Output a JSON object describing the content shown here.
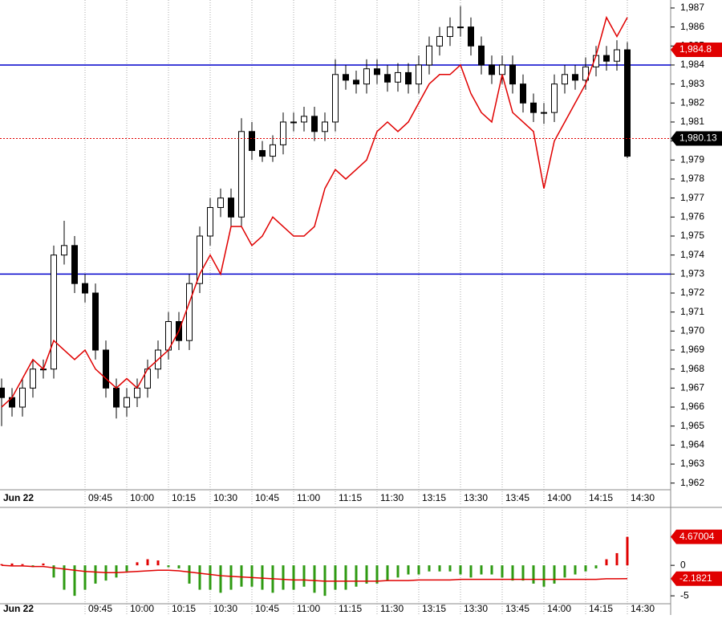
{
  "chart_data": [
    {
      "type": "candlestick",
      "categories": [
        "Jun 22",
        null,
        null,
        null,
        null,
        null,
        null,
        null,
        "09:45",
        null,
        null,
        null,
        "10:00",
        null,
        null,
        null,
        "10:15",
        null,
        null,
        null,
        "10:30",
        null,
        null,
        null,
        "10:45",
        null,
        null,
        null,
        "11:00",
        null,
        null,
        null,
        "11:15",
        null,
        null,
        null,
        "11:30",
        null,
        null,
        null,
        "13:15",
        null,
        null,
        null,
        "13:30",
        null,
        null,
        null,
        "13:45",
        null,
        null,
        null,
        "14:00",
        null,
        null,
        null,
        "14:15",
        null,
        null,
        null,
        "14:30"
      ],
      "open": [
        1967,
        1966.5,
        1966,
        1967,
        1968,
        1968,
        1974,
        1974.5,
        1972.5,
        1972,
        1969,
        1967,
        1966,
        1966.5,
        1967,
        1968,
        1969,
        1970.5,
        1969.5,
        1972.5,
        1975,
        1976.5,
        1977,
        1976,
        1980.5,
        1979.5,
        1979.2,
        1979.8,
        1981,
        1981,
        1981.3,
        1980.5,
        1981,
        1983.5,
        1983.2,
        1983,
        1983.8,
        1983.5,
        1983.1,
        1983.6,
        1983,
        1984,
        1985,
        1985.5,
        1986,
        1986,
        1985,
        1984,
        1983.5,
        1984,
        1983,
        1982,
        1981.5,
        1981.5,
        1983,
        1983.5,
        1983.2,
        1983.9,
        1984.5,
        1984.2,
        1984.8
      ],
      "high": [
        1967.5,
        1967,
        1967.5,
        1968.5,
        1968.5,
        1974.5,
        1975.8,
        1975,
        1973,
        1972.5,
        1969.5,
        1967.5,
        1967,
        1967.5,
        1968.5,
        1969.5,
        1971,
        1971,
        1973,
        1975.5,
        1977,
        1977.5,
        1977.5,
        1981.2,
        1981,
        1980,
        1980.3,
        1981.5,
        1981.5,
        1981.8,
        1981.8,
        1981.5,
        1984.3,
        1984,
        1983.7,
        1984.3,
        1984.3,
        1984,
        1984.1,
        1984.1,
        1984.5,
        1985.5,
        1986,
        1986.5,
        1987.1,
        1986.5,
        1985.5,
        1984.5,
        1984.5,
        1984.5,
        1983.5,
        1982.5,
        1982,
        1983.5,
        1984,
        1984,
        1984.4,
        1985,
        1985,
        1985.3,
        1985.2
      ],
      "low": [
        1965,
        1965.5,
        1965.5,
        1966.5,
        1967.5,
        1967.5,
        1973.5,
        1972,
        1971.5,
        1968.5,
        1966.5,
        1965.4,
        1965.5,
        1966,
        1966.5,
        1967.5,
        1968.5,
        1969,
        1969,
        1972,
        1974.5,
        1976,
        1975.5,
        1975.5,
        1979,
        1978.9,
        1978.9,
        1979.3,
        1980.5,
        1980.5,
        1980,
        1980,
        1980.5,
        1982.7,
        1982.5,
        1982.5,
        1983,
        1982.6,
        1982.6,
        1982.5,
        1982.5,
        1983.5,
        1984.5,
        1985,
        1985.5,
        1984.5,
        1983.5,
        1983,
        1983,
        1982.5,
        1981.5,
        1981,
        1980.9,
        1981,
        1982.5,
        1982.7,
        1982.7,
        1983.4,
        1983.7,
        1983.7,
        1979.1
      ],
      "close": [
        1966.5,
        1966,
        1967,
        1968,
        1968,
        1974,
        1974.5,
        1972.5,
        1972,
        1969,
        1967,
        1966,
        1966.5,
        1967,
        1968,
        1969,
        1970.5,
        1969.5,
        1972.5,
        1975,
        1976.5,
        1977,
        1976,
        1980.5,
        1979.5,
        1979.2,
        1979.8,
        1981,
        1981,
        1981.3,
        1980.5,
        1981,
        1983.5,
        1983.2,
        1983,
        1983.8,
        1983.5,
        1983.1,
        1983.6,
        1983,
        1984,
        1985,
        1985.5,
        1986,
        1986,
        1985,
        1984,
        1983.5,
        1984,
        1983,
        1982,
        1981.5,
        1981.5,
        1983,
        1983.5,
        1983.2,
        1983.9,
        1984.5,
        1984.2,
        1984.8,
        1979.2
      ],
      "overlay": {
        "color": "#e00000",
        "values": [
          1966,
          1966.5,
          1967.5,
          1968.5,
          1968,
          1969.5,
          1969,
          1968.5,
          1969,
          1968,
          1967.5,
          1967,
          1967.5,
          1967,
          1968,
          1968.5,
          1969,
          1970,
          1971.5,
          1973,
          1974,
          1973,
          1975.5,
          1975.5,
          1974.5,
          1975,
          1976,
          1975.5,
          1975,
          1975,
          1975.5,
          1977.5,
          1978.5,
          1978,
          1978.5,
          1979,
          1980.5,
          1981,
          1980.5,
          1981,
          1982,
          1983,
          1983.5,
          1983.5,
          1984,
          1982.5,
          1981.5,
          1981,
          1983.5,
          1981.5,
          1981,
          1980.5,
          1977.5,
          1980,
          1981,
          1982,
          1983,
          1984.5,
          1986.5,
          1985.5,
          1986.5
        ]
      },
      "hlines": {
        "color": "#0000cc",
        "values": [
          1984,
          1973
        ]
      },
      "markers": [
        {
          "value": 1984.8,
          "label": "1,984.8",
          "color": "#e00000"
        },
        {
          "value": 1980.13,
          "label": "1,980.13",
          "color": "#000000",
          "line": "dotted"
        }
      ],
      "ylim": [
        1961.65,
        1987.42
      ],
      "yticks": [
        {
          "value": 1962,
          "label": "1,962"
        },
        {
          "value": 1963,
          "label": "1,963"
        },
        {
          "value": 1964,
          "label": "1,964"
        },
        {
          "value": 1965,
          "label": "1,965"
        },
        {
          "value": 1966,
          "label": "1,966"
        },
        {
          "value": 1967,
          "label": "1,967"
        },
        {
          "value": 1968,
          "label": "1,968"
        },
        {
          "value": 1969,
          "label": "1,969"
        },
        {
          "value": 1970,
          "label": "1,970"
        },
        {
          "value": 1971,
          "label": "1,971"
        },
        {
          "value": 1972,
          "label": "1,972"
        },
        {
          "value": 1973,
          "label": "1,973"
        },
        {
          "value": 1974,
          "label": "1,974"
        },
        {
          "value": 1975,
          "label": "1,975"
        },
        {
          "value": 1976,
          "label": "1,976"
        },
        {
          "value": 1977,
          "label": "1,977"
        },
        {
          "value": 1978,
          "label": "1,978"
        },
        {
          "value": 1979,
          "label": "1,979"
        },
        {
          "value": 1980,
          "label": "1,980"
        },
        {
          "value": 1981,
          "label": "1,981"
        },
        {
          "value": 1982,
          "label": "1,982"
        },
        {
          "value": 1983,
          "label": "1,983"
        },
        {
          "value": 1984,
          "label": "1,984"
        },
        {
          "value": 1985,
          "label": "1,985"
        },
        {
          "value": 1986,
          "label": "1,986"
        },
        {
          "value": 1987,
          "label": "1,987"
        }
      ],
      "grid": true
    },
    {
      "type": "oscillator",
      "categories": [
        "Jun 22",
        null,
        null,
        null,
        null,
        null,
        null,
        null,
        "09:45",
        null,
        null,
        null,
        "10:00",
        null,
        null,
        null,
        "10:15",
        null,
        null,
        null,
        "10:30",
        null,
        null,
        null,
        "10:45",
        null,
        null,
        null,
        "11:00",
        null,
        null,
        null,
        "11:15",
        null,
        null,
        null,
        "11:30",
        null,
        null,
        null,
        "13:15",
        null,
        null,
        null,
        "13:30",
        null,
        null,
        null,
        "13:45",
        null,
        null,
        null,
        "14:00",
        null,
        null,
        null,
        "14:15",
        null,
        null,
        null,
        "14:30"
      ],
      "values": [
        0.2,
        0.3,
        0.2,
        -0.3,
        0.3,
        -2,
        -4,
        -5,
        -4,
        -3,
        -2.5,
        -2,
        -1,
        0.5,
        1,
        0.8,
        -0.3,
        -0.5,
        -3,
        -4,
        -4,
        -4.5,
        -4,
        -3.5,
        -3.5,
        -4,
        -4.5,
        -4,
        -4,
        -3.5,
        -4.5,
        -5,
        -4,
        -4,
        -3.5,
        -3,
        -3,
        -2.5,
        -2,
        -1.5,
        -1.5,
        -1,
        -1,
        -1,
        -1.5,
        -2,
        -1.5,
        -1.5,
        -2,
        -2.5,
        -2.5,
        -3,
        -3.5,
        -3,
        -2,
        -1.5,
        -1,
        -0.5,
        1,
        2,
        4.67004
      ],
      "up_color": "#e00000",
      "down_color": "#2e9a12",
      "signal": {
        "color": "#e00000",
        "values": [
          0,
          -0.1,
          -0.1,
          -0.2,
          -0.2,
          -0.4,
          -0.6,
          -0.8,
          -1,
          -1.1,
          -1.2,
          -1.2,
          -1.1,
          -1,
          -0.9,
          -0.8,
          -0.8,
          -0.9,
          -1.1,
          -1.3,
          -1.5,
          -1.7,
          -1.8,
          -1.9,
          -2,
          -2.1,
          -2.2,
          -2.3,
          -2.4,
          -2.4,
          -2.5,
          -2.6,
          -2.6,
          -2.6,
          -2.6,
          -2.6,
          -2.6,
          -2.5,
          -2.5,
          -2.5,
          -2.4,
          -2.4,
          -2.4,
          -2.4,
          -2.3,
          -2.3,
          -2.3,
          -2.3,
          -2.3,
          -2.3,
          -2.3,
          -2.3,
          -2.3,
          -2.3,
          -2.3,
          -2.3,
          -2.3,
          -2.3,
          -2.2,
          -2.2,
          -2.1821
        ]
      },
      "markers": [
        {
          "value": 4.67004,
          "color": "#e00000"
        },
        {
          "value": -2.1821,
          "color": "#e00000"
        }
      ],
      "ylim": [
        -6.3,
        9.5
      ],
      "yticks": [
        0,
        -5
      ],
      "grid": true
    }
  ]
}
